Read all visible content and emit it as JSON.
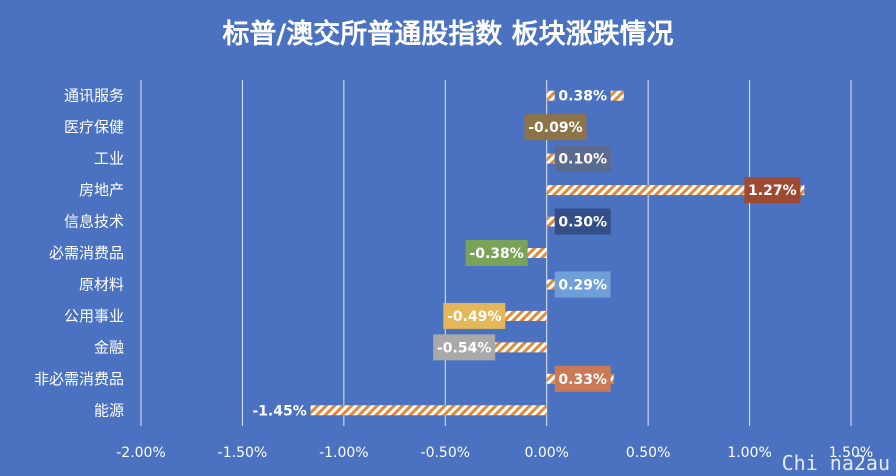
{
  "chart_data": {
    "type": "bar",
    "orientation": "horizontal",
    "title": "标普/澳交所普通股指数 板块涨跌情况",
    "categories": [
      "通讯服务",
      "医疗保健",
      "工业",
      "房地产",
      "信息技术",
      "必需消费品",
      "原材料",
      "公用事业",
      "金融",
      "非必需消费品",
      "能源"
    ],
    "values": [
      0.38,
      -0.09,
      0.1,
      1.27,
      0.3,
      -0.38,
      0.29,
      -0.49,
      -0.54,
      0.33,
      -1.45
    ],
    "value_unit": "%",
    "data_labels": [
      "0.38%",
      "-0.09%",
      "0.10%",
      "1.27%",
      "0.30%",
      "-0.38%",
      "0.29%",
      "-0.49%",
      "-0.54%",
      "0.33%",
      "-1.45%"
    ],
    "label_colors": [
      "#4a72c1",
      "#8c7348",
      "#5b6a8f",
      "#9e4a33",
      "#344f87",
      "#7aa35a",
      "#6f9fd8",
      "#e3b75a",
      "#a9a9a9",
      "#c97a56",
      "#4a72c1"
    ],
    "xlim": [
      -2.0,
      1.5
    ],
    "x_ticks": [
      "-2.00%",
      "-1.50%",
      "-1.00%",
      "-0.50%",
      "0.00%",
      "0.50%",
      "1.00%",
      "1.50%"
    ],
    "x_tick_values": [
      -2.0,
      -1.5,
      -1.0,
      -0.5,
      0.0,
      0.5,
      1.0,
      1.5
    ],
    "bar_fill": "hatched orange/white",
    "background": "#4a72c1",
    "grid": true,
    "legend": false
  },
  "watermark": "Chi na2au"
}
